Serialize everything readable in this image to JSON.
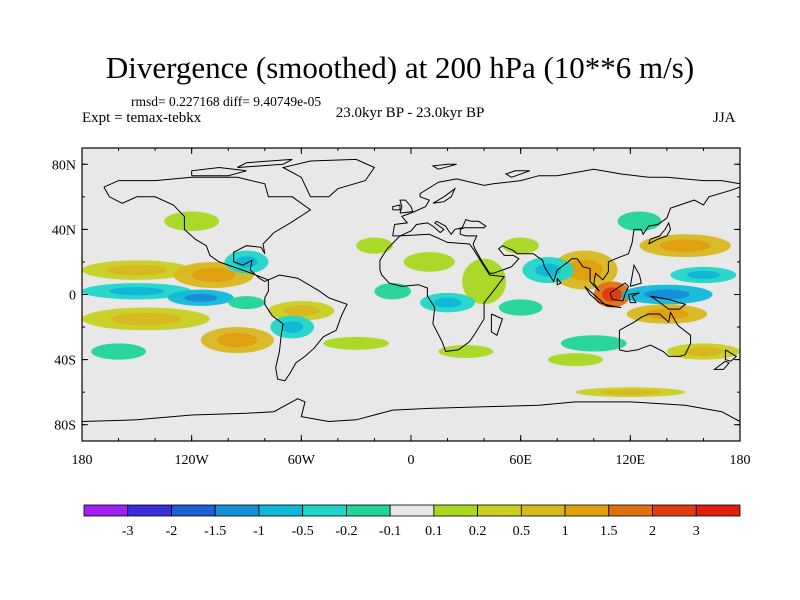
{
  "title": "Divergence (smoothed) at 200 hPa (10**6 m/s)",
  "stats": "rmsd= 0.227168  diff= 9.40749e-05",
  "experiment": "Expt = temax-tebkx",
  "period": "23.0kyr BP - 23.0kyr BP",
  "season": "JJA",
  "axes": {
    "x_ticks": [
      "180",
      "120W",
      "60W",
      "0",
      "60E",
      "120E",
      "180"
    ],
    "y_ticks": [
      "80N",
      "40N",
      "0",
      "40S",
      "80S"
    ]
  },
  "colorbar": {
    "labels": [
      "-3",
      "-2",
      "-1.5",
      "-1",
      "-0.5",
      "-0.2",
      "-0.1",
      "0.1",
      "0.2",
      "0.5",
      "1",
      "1.5",
      "2",
      "3"
    ],
    "colors": [
      "#a020f0",
      "#3a2fd8",
      "#1f5fd6",
      "#1590d8",
      "#10b8d8",
      "#20d6c8",
      "#20d49a",
      "#e8e8e8",
      "#a8d820",
      "#c8d020",
      "#d8b820",
      "#e0a010",
      "#e07010",
      "#e03c10",
      "#e01e10"
    ]
  },
  "fields": {
    "positive": [
      {
        "lon": -150,
        "lat": 15,
        "rx": 30,
        "ry": 6,
        "level": 2
      },
      {
        "lon": -108,
        "lat": 12,
        "rx": 22,
        "ry": 8,
        "level": 3
      },
      {
        "lon": -145,
        "lat": -15,
        "rx": 35,
        "ry": 7,
        "level": 2
      },
      {
        "lon": -95,
        "lat": -28,
        "rx": 20,
        "ry": 8,
        "level": 3
      },
      {
        "lon": -60,
        "lat": -10,
        "rx": 18,
        "ry": 6,
        "level": 2
      },
      {
        "lon": -20,
        "lat": 30,
        "rx": 10,
        "ry": 5,
        "level": 1
      },
      {
        "lon": 10,
        "lat": 20,
        "rx": 14,
        "ry": 6,
        "level": 1
      },
      {
        "lon": 40,
        "lat": 8,
        "rx": 12,
        "ry": 14,
        "level": 1
      },
      {
        "lon": 60,
        "lat": 30,
        "rx": 10,
        "ry": 5,
        "level": 1
      },
      {
        "lon": 95,
        "lat": 15,
        "rx": 18,
        "ry": 12,
        "level": 3
      },
      {
        "lon": 110,
        "lat": 0,
        "rx": 10,
        "ry": 8,
        "level": 5
      },
      {
        "lon": 150,
        "lat": 30,
        "rx": 25,
        "ry": 7,
        "level": 3
      },
      {
        "lon": 140,
        "lat": -12,
        "rx": 22,
        "ry": 6,
        "level": 3
      },
      {
        "lon": 160,
        "lat": -35,
        "rx": 20,
        "ry": 5,
        "level": 2
      },
      {
        "lon": 30,
        "lat": -35,
        "rx": 15,
        "ry": 4,
        "level": 1
      },
      {
        "lon": -30,
        "lat": -30,
        "rx": 18,
        "ry": 4,
        "level": 1
      },
      {
        "lon": 90,
        "lat": -40,
        "rx": 15,
        "ry": 4,
        "level": 1
      },
      {
        "lon": 120,
        "lat": -60,
        "rx": 30,
        "ry": 3,
        "level": 2
      },
      {
        "lon": -120,
        "lat": 45,
        "rx": 15,
        "ry": 6,
        "level": 1
      }
    ],
    "negative": [
      {
        "lon": -150,
        "lat": 2,
        "rx": 30,
        "ry": 5,
        "level": 2
      },
      {
        "lon": -115,
        "lat": -2,
        "rx": 18,
        "ry": 5,
        "level": 3
      },
      {
        "lon": -90,
        "lat": -5,
        "rx": 10,
        "ry": 4,
        "level": 1
      },
      {
        "lon": -65,
        "lat": -20,
        "rx": 12,
        "ry": 7,
        "level": 2
      },
      {
        "lon": -90,
        "lat": 20,
        "rx": 12,
        "ry": 7,
        "level": 2
      },
      {
        "lon": -10,
        "lat": 2,
        "rx": 10,
        "ry": 5,
        "level": 1
      },
      {
        "lon": 20,
        "lat": -5,
        "rx": 15,
        "ry": 6,
        "level": 2
      },
      {
        "lon": 60,
        "lat": -8,
        "rx": 12,
        "ry": 5,
        "level": 1
      },
      {
        "lon": 75,
        "lat": 15,
        "rx": 14,
        "ry": 8,
        "level": 2
      },
      {
        "lon": 140,
        "lat": 0,
        "rx": 25,
        "ry": 6,
        "level": 3
      },
      {
        "lon": 160,
        "lat": 12,
        "rx": 18,
        "ry": 5,
        "level": 2
      },
      {
        "lon": 100,
        "lat": -30,
        "rx": 18,
        "ry": 5,
        "level": 1
      },
      {
        "lon": -160,
        "lat": -35,
        "rx": 15,
        "ry": 5,
        "level": 1
      },
      {
        "lon": 125,
        "lat": 45,
        "rx": 12,
        "ry": 6,
        "level": 1
      }
    ]
  }
}
